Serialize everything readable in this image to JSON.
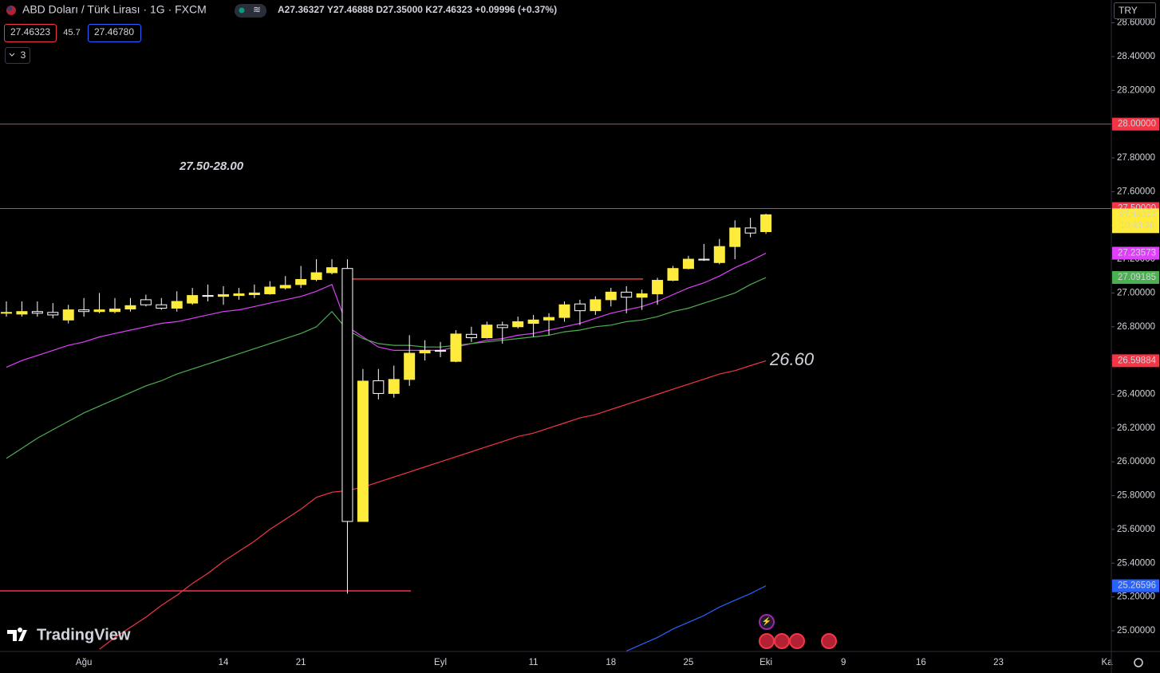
{
  "chart_data": {
    "type": "candlestick",
    "header": {
      "title": "ABD Doları / Türk Lirası · 1G · FXCM",
      "ohlc": "A27.36327 Y27.46888 D27.35000 K27.46323 +0.09996 (+0.37%)",
      "sell": "27.46323",
      "spread": "45.7",
      "buy": "27.46780",
      "count": "3",
      "currency": "TRY",
      "countdown": "10:43:36",
      "watermark": "TradingView"
    },
    "categories": [
      null,
      null,
      null,
      null,
      null,
      "Ağu",
      null,
      null,
      null,
      null,
      null,
      null,
      null,
      null,
      "14",
      null,
      null,
      null,
      null,
      "21",
      null,
      null,
      null,
      null,
      null,
      null,
      null,
      null,
      "Eyl",
      null,
      null,
      null,
      null,
      null,
      "11",
      null,
      null,
      null,
      null,
      "18",
      null,
      null,
      null,
      null,
      "25",
      null,
      null,
      null,
      null,
      "Eki",
      null,
      null,
      null,
      null,
      "9",
      null,
      null,
      null,
      null,
      "16",
      null,
      null,
      null,
      null,
      "23",
      null,
      null,
      null,
      null,
      null,
      null,
      "Ka"
    ],
    "open": [
      26.88,
      26.875,
      26.89,
      26.885,
      26.84,
      26.9,
      26.89,
      26.89,
      26.905,
      26.96,
      26.93,
      26.91,
      26.94,
      26.985,
      26.98,
      26.985,
      26.99,
      26.995,
      27.03,
      27.05,
      27.08,
      27.12,
      27.145,
      25.647,
      26.48,
      26.405,
      26.488,
      26.645,
      26.66,
      26.595,
      26.755,
      26.735,
      26.81,
      26.8,
      26.82,
      26.84,
      26.855,
      26.935,
      26.895,
      26.96,
      27.005,
      26.975,
      26.995,
      27.075,
      27.145,
      27.2,
      27.18,
      27.275,
      27.385,
      27.36327,
      null,
      null,
      null,
      null,
      null,
      null,
      null,
      null,
      null,
      null,
      null,
      null,
      null,
      null,
      null,
      null,
      null,
      null,
      null,
      null,
      null,
      null
    ],
    "high": [
      26.95,
      26.95,
      26.95,
      26.94,
      26.93,
      26.97,
      27.0,
      26.97,
      26.97,
      26.99,
      26.97,
      27.01,
      27.03,
      27.05,
      27.04,
      27.03,
      27.05,
      27.07,
      27.1,
      27.16,
      27.2,
      27.2,
      27.2,
      26.55,
      26.55,
      26.57,
      26.75,
      26.72,
      26.71,
      26.78,
      26.8,
      26.83,
      26.83,
      26.86,
      26.87,
      26.88,
      26.95,
      26.96,
      26.98,
      27.03,
      27.04,
      27.02,
      27.09,
      27.16,
      27.22,
      27.29,
      27.32,
      27.43,
      27.445,
      27.46888,
      null,
      null,
      null,
      null,
      null,
      null,
      null,
      null,
      null,
      null,
      null,
      null,
      null,
      null,
      null,
      null,
      null,
      null,
      null,
      null,
      null,
      null
    ],
    "low": [
      26.86,
      26.86,
      26.86,
      26.85,
      26.82,
      26.86,
      26.88,
      26.88,
      26.89,
      26.92,
      26.9,
      26.89,
      26.93,
      26.95,
      26.93,
      26.96,
      26.97,
      26.99,
      27.02,
      27.03,
      27.07,
      27.11,
      25.22,
      25.647,
      26.37,
      26.38,
      26.45,
      26.6,
      26.62,
      26.59,
      26.71,
      26.73,
      26.7,
      26.79,
      26.74,
      26.75,
      26.83,
      26.81,
      26.87,
      26.92,
      26.88,
      26.9,
      26.93,
      27.07,
      27.14,
      27.19,
      27.17,
      27.2,
      27.33,
      27.35,
      null,
      null,
      null,
      null,
      null,
      null,
      null,
      null,
      null,
      null,
      null,
      null,
      null,
      null,
      null,
      null,
      null,
      null,
      null,
      null,
      null,
      null
    ],
    "close": [
      26.885,
      26.89,
      26.88,
      26.87,
      26.9,
      26.89,
      26.9,
      26.905,
      26.925,
      26.93,
      26.91,
      26.95,
      26.985,
      26.98,
      26.99,
      26.995,
      27.0,
      27.035,
      27.045,
      27.08,
      27.12,
      27.15,
      25.647,
      26.478,
      26.405,
      26.488,
      26.643,
      26.66,
      26.655,
      26.757,
      26.735,
      26.81,
      26.795,
      26.83,
      26.84,
      26.855,
      26.93,
      26.895,
      26.96,
      27.005,
      26.975,
      26.995,
      27.075,
      27.145,
      27.2,
      27.195,
      27.275,
      27.385,
      27.355,
      27.46323,
      null,
      null,
      null,
      null,
      null,
      null,
      null,
      null,
      null,
      null,
      null,
      null,
      null,
      null,
      null,
      null,
      null,
      null,
      null,
      null,
      null,
      null
    ],
    "up_color": "#ffeb3b",
    "down_color": "#000000",
    "wick_color": "#ffffff",
    "series": [
      {
        "color": "#e040fb",
        "values": [
          26.56,
          26.6,
          26.63,
          26.66,
          26.69,
          26.71,
          26.74,
          26.76,
          26.78,
          26.8,
          26.82,
          26.83,
          26.85,
          26.87,
          26.89,
          26.9,
          26.92,
          26.94,
          26.96,
          26.98,
          27.01,
          27.05,
          26.8,
          26.74,
          26.68,
          26.66,
          26.66,
          26.66,
          26.66,
          26.68,
          26.7,
          26.72,
          26.73,
          26.75,
          26.76,
          26.78,
          26.8,
          26.82,
          26.85,
          26.88,
          26.9,
          26.92,
          26.95,
          26.99,
          27.03,
          27.06,
          27.1,
          27.15,
          27.19,
          27.23573,
          null,
          null,
          null,
          null,
          null,
          null,
          null,
          null,
          null,
          null,
          null,
          null,
          null,
          null,
          null,
          null,
          null,
          null,
          null,
          null,
          null,
          null
        ]
      },
      {
        "color": "#4caf50",
        "values": [
          26.02,
          26.08,
          26.14,
          26.19,
          26.24,
          26.29,
          26.33,
          26.37,
          26.41,
          26.45,
          26.48,
          26.52,
          26.55,
          26.58,
          26.61,
          26.64,
          26.67,
          26.7,
          26.73,
          26.76,
          26.8,
          26.89,
          26.78,
          26.73,
          26.7,
          26.69,
          26.69,
          26.68,
          26.68,
          26.69,
          26.7,
          26.71,
          26.72,
          26.73,
          26.74,
          26.75,
          26.77,
          26.78,
          26.8,
          26.81,
          26.83,
          26.84,
          26.86,
          26.89,
          26.91,
          26.94,
          26.97,
          27.0,
          27.05,
          27.09185,
          null,
          null,
          null,
          null,
          null,
          null,
          null,
          null,
          null,
          null,
          null,
          null,
          null,
          null,
          null,
          null,
          null,
          null,
          null,
          null,
          null,
          null
        ]
      },
      {
        "color": "#f23645",
        "values": [
          null,
          null,
          null,
          null,
          null,
          null,
          24.89,
          24.96,
          25.02,
          25.08,
          25.15,
          25.21,
          25.28,
          25.34,
          25.41,
          25.47,
          25.53,
          25.6,
          25.66,
          25.72,
          25.79,
          25.82,
          25.83,
          25.85,
          25.88,
          25.91,
          25.94,
          25.97,
          26.0,
          26.03,
          26.06,
          26.09,
          26.12,
          26.15,
          26.17,
          26.2,
          26.23,
          26.26,
          26.28,
          26.31,
          26.34,
          26.37,
          26.4,
          26.43,
          26.46,
          26.49,
          26.52,
          26.54,
          26.57,
          26.59884,
          null,
          null,
          null,
          null,
          null,
          null,
          null,
          null,
          null,
          null,
          null,
          null,
          null,
          null,
          null,
          null,
          null,
          null,
          null,
          null,
          null,
          null
        ]
      },
      {
        "color": "#2962ff",
        "values": [
          null,
          null,
          null,
          null,
          null,
          null,
          null,
          null,
          null,
          null,
          null,
          null,
          null,
          null,
          null,
          null,
          null,
          null,
          null,
          null,
          null,
          null,
          null,
          null,
          null,
          null,
          null,
          null,
          null,
          null,
          null,
          null,
          null,
          null,
          null,
          null,
          null,
          null,
          null,
          null,
          24.88,
          24.92,
          24.96,
          25.01,
          25.05,
          25.09,
          25.14,
          25.18,
          25.22,
          25.26596,
          null,
          null,
          null,
          null,
          null,
          null,
          null,
          null,
          null,
          null,
          null,
          null,
          null,
          null,
          null,
          null,
          null,
          null,
          null,
          null,
          null,
          null
        ]
      }
    ],
    "hlines": [
      {
        "value": 28,
        "label": "28.00000"
      },
      {
        "value": 27.5,
        "label": "27.50000"
      }
    ],
    "segments": [
      27.083,
      25.236
    ],
    "annotations": [
      "27.50-28.00",
      "26.60"
    ],
    "ylim": [
      24.877,
      28.735
    ],
    "yticks": [
      {
        "value": 25,
        "label": "25.00000"
      },
      {
        "value": 25.2,
        "label": "25.20000"
      },
      {
        "value": 25.4,
        "label": "25.40000"
      },
      {
        "value": 25.6,
        "label": "25.60000"
      },
      {
        "value": 25.8,
        "label": "25.80000"
      },
      {
        "value": 26,
        "label": "26.00000"
      },
      {
        "value": 26.2,
        "label": "26.20000"
      },
      {
        "value": 26.4,
        "label": "26.40000"
      },
      {
        "value": 26.6,
        "label": "26.60000"
      },
      {
        "value": 26.8,
        "label": "26.80000"
      },
      {
        "value": 27,
        "label": "27.00000"
      },
      {
        "value": 27.2,
        "label": "27.20000"
      },
      {
        "value": 27.4,
        "label": "27.40000"
      },
      {
        "value": 27.6,
        "label": "27.60000"
      },
      {
        "value": 27.8,
        "label": "27.80000"
      },
      {
        "value": 28,
        "label": "28.00000"
      },
      {
        "value": 28.2,
        "label": "28.20000"
      },
      {
        "value": 28.4,
        "label": "28.40000"
      },
      {
        "value": 28.6,
        "label": "28.60000"
      }
    ],
    "grid": false
  }
}
